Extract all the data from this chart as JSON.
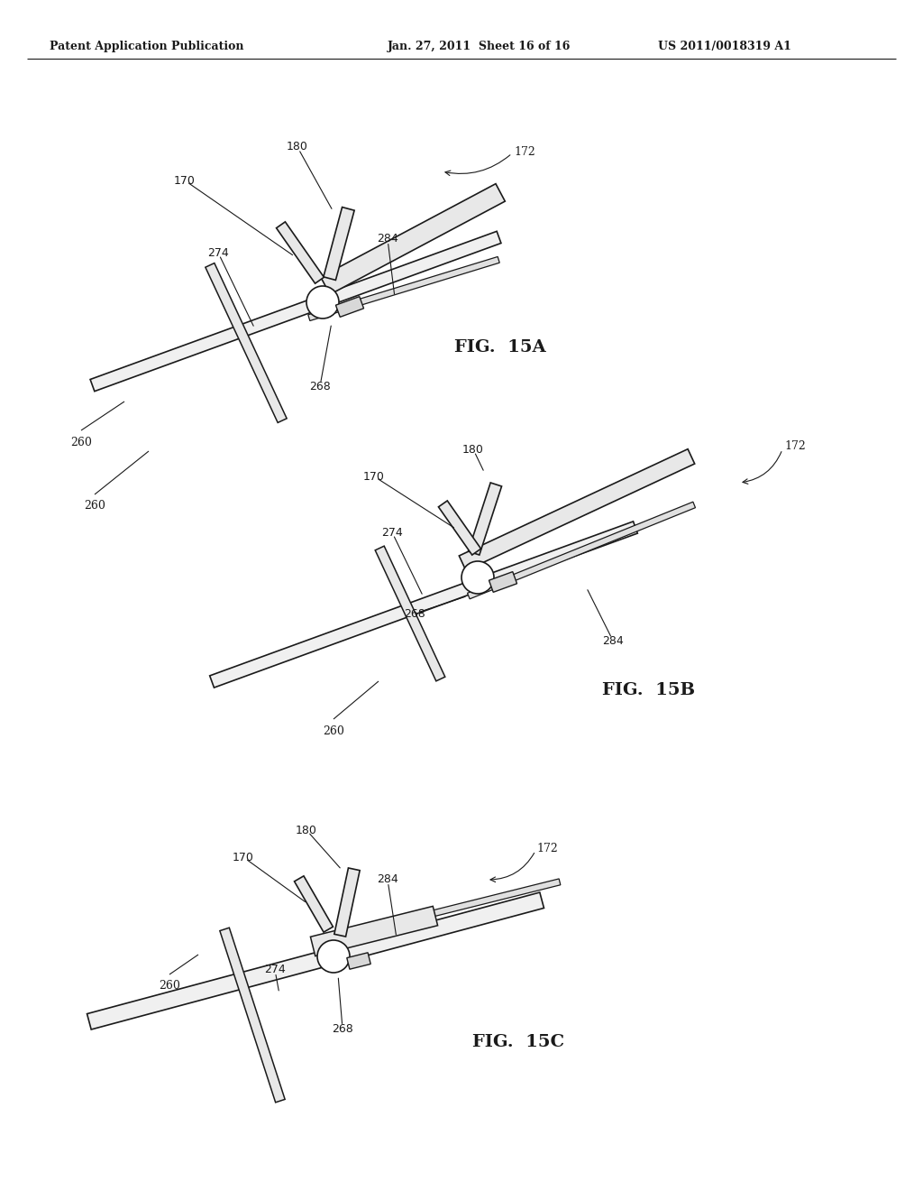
{
  "header_left": "Patent Application Publication",
  "header_mid": "Jan. 27, 2011  Sheet 16 of 16",
  "header_right": "US 2011/0018319 A1",
  "background_color": "#ffffff",
  "line_color": "#1a1a1a",
  "header_fontsize": 9,
  "annotation_fontsize": 9,
  "fig_label_fontsize": 14
}
